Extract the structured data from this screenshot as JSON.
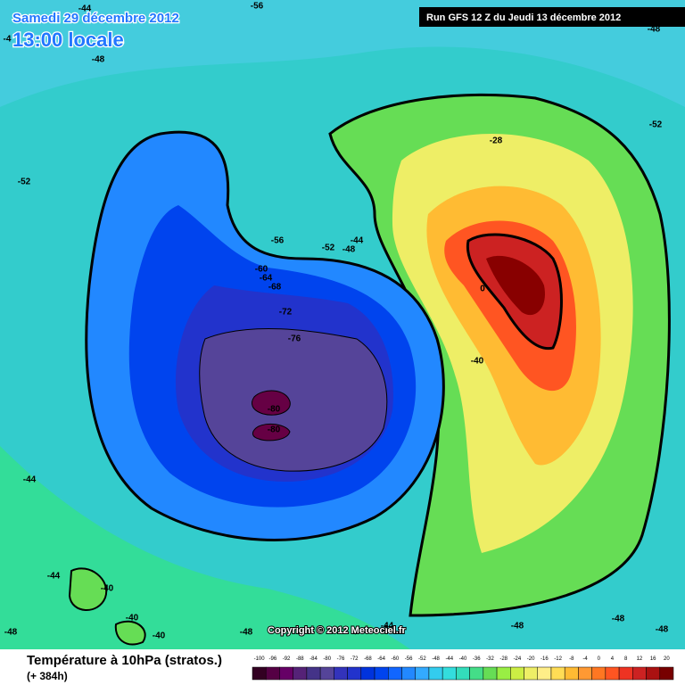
{
  "header": {
    "date": "Samedi 29 décembre 2012",
    "time": "13:00 locale",
    "run": "Run GFS 12 Z du Jeudi 13 décembre 2012"
  },
  "footer": {
    "title": "Température à 10hPa (stratos.)",
    "lead": "(+ 384h)",
    "copyright": "Copyright © 2012 Meteociel.fr"
  },
  "scale": {
    "ticks": [
      -100,
      -96,
      -92,
      -88,
      -84,
      -80,
      -76,
      -72,
      -68,
      -64,
      -60,
      -56,
      -52,
      -48,
      -44,
      -40,
      -36,
      -32,
      -28,
      -24,
      -20,
      -16,
      -12,
      -8,
      -4,
      0,
      4,
      8,
      12,
      16,
      20
    ],
    "colors": [
      "#330022",
      "#550044",
      "#660066",
      "#552277",
      "#443388",
      "#554499",
      "#3333bb",
      "#2233cc",
      "#0033dd",
      "#0044ee",
      "#1166ff",
      "#2288ff",
      "#33aaff",
      "#33ccee",
      "#33dddd",
      "#33ddbb",
      "#44dd88",
      "#66dd55",
      "#99ee44",
      "#ccee44",
      "#eeee66",
      "#ffee88",
      "#ffdd55",
      "#ffbb33",
      "#ff9933",
      "#ff7722",
      "#ff5522",
      "#ee3322",
      "#cc2222",
      "#aa1111",
      "#770000"
    ]
  },
  "map_labels": [
    "-56",
    "-44",
    "-48",
    "-4",
    "-52",
    "-48",
    "-52",
    "-56",
    "-52",
    "-44",
    "-48",
    "-60",
    "-64",
    "-68",
    "-72",
    "-76",
    "-80",
    "-80",
    "0",
    "-28",
    "-40",
    "-44",
    "-44",
    "-48",
    "-40",
    "-40",
    "-40",
    "-48",
    "-44",
    "-48",
    "-48",
    "-48"
  ]
}
